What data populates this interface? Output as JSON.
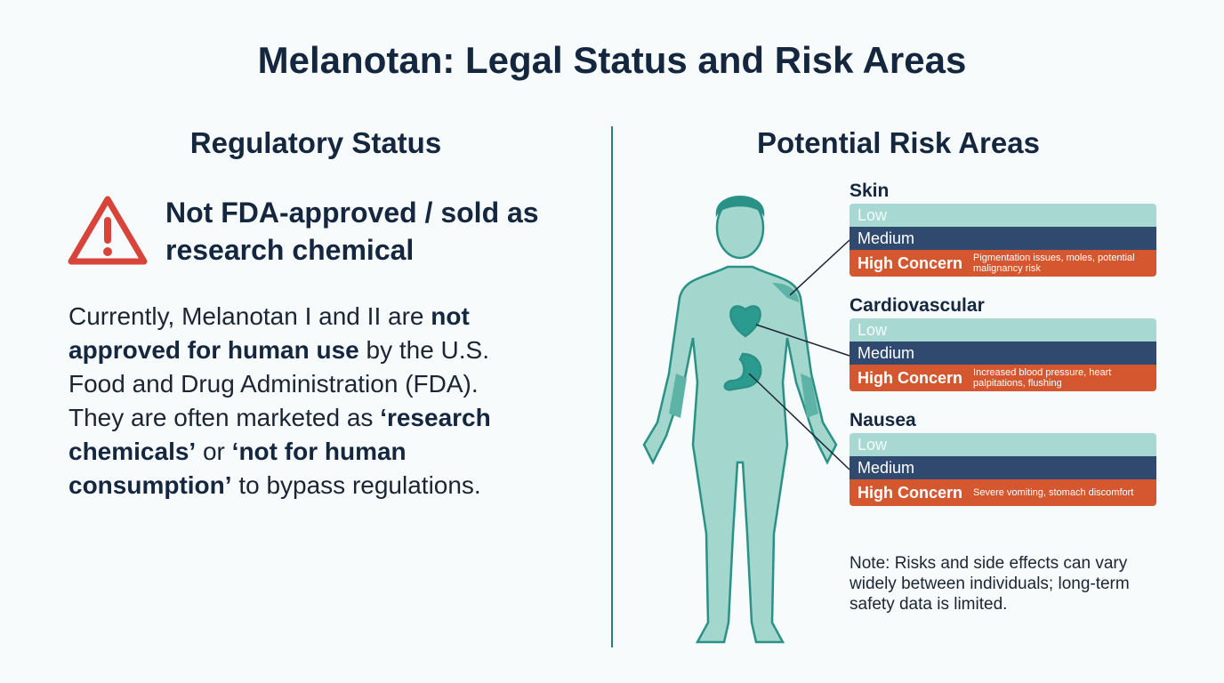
{
  "title": "Melanotan: Legal Status and Risk Areas",
  "regulatory": {
    "heading": "Regulatory Status",
    "status": "Not FDA-approved / sold as research chemical",
    "paragraph": [
      {
        "text": "Currently, Melanotan I and II are ",
        "bold": false
      },
      {
        "text": "not approved for human use",
        "bold": true
      },
      {
        "text": " by the U.S. Food and Drug Administration (FDA). They are often marketed as ",
        "bold": false
      },
      {
        "text": "‘research chemicals’",
        "bold": true
      },
      {
        "text": " or ",
        "bold": false
      },
      {
        "text": "‘not for human consumption’",
        "bold": true
      },
      {
        "text": " to bypass regulations.",
        "bold": false
      }
    ]
  },
  "risks": {
    "heading": "Potential Risk Areas",
    "areas": [
      {
        "name": "Skin",
        "levels": [
          "Low",
          "Medium",
          "High Concern"
        ],
        "detail": "Pigmentation issues, moles, potential malignancy risk"
      },
      {
        "name": "Cardiovascular",
        "levels": [
          "Low",
          "Medium",
          "High Concern"
        ],
        "detail": "Increased blood pressure, heart palpitations, flushing"
      },
      {
        "name": "Nausea",
        "levels": [
          "Low",
          "Medium",
          "High Concern"
        ],
        "detail": "Severe vomiting, stomach discomfort"
      }
    ],
    "note": "Note: Risks and side effects can vary widely between individuals; long-term safety data is limited."
  }
}
